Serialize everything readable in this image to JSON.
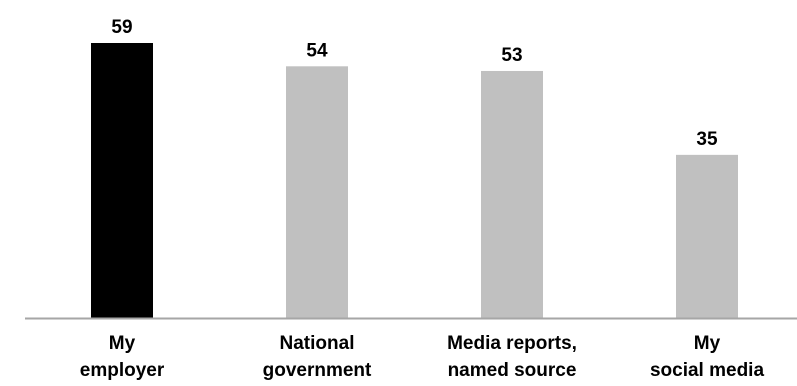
{
  "chart_data": {
    "type": "bar",
    "title": "",
    "xlabel": "",
    "ylabel": "",
    "ylim": [
      0,
      59
    ],
    "grid": false,
    "legend": "none",
    "categories": [
      [
        "My",
        "employer"
      ],
      [
        "National",
        "government"
      ],
      [
        "Media reports,",
        "named source"
      ],
      [
        "My",
        "social media"
      ]
    ],
    "values": [
      59,
      54,
      53,
      35
    ],
    "colors": [
      "#000000",
      "#c0c0c0",
      "#c0c0c0",
      "#c0c0c0"
    ],
    "axis_color": "#a6a6a6"
  }
}
